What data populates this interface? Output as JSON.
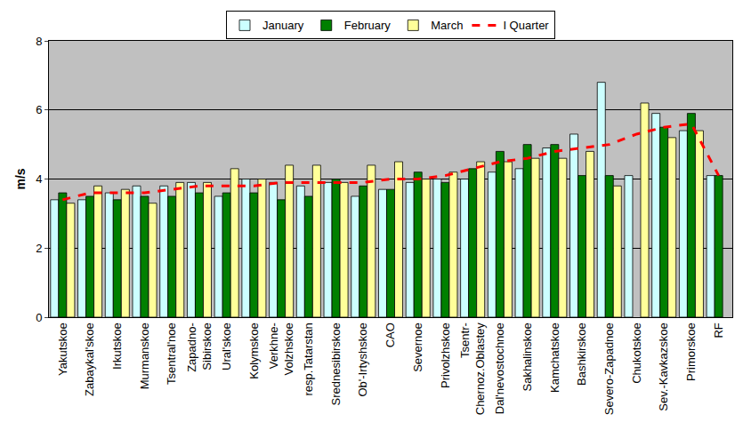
{
  "chart_data": {
    "type": "bar",
    "y_label": "m/s",
    "categories": [
      "Yakutskoe",
      "Zabaykal'skoe",
      "Irkutskoe",
      "Murmanskoe",
      "Tsentral'noe",
      "Zapadno-\nSibirskoe",
      "Ural'skoe",
      "Kolymskoe",
      "Verkhne-\nVolzhskoe",
      "resp.Tatarstan",
      "Srednesibirskoe",
      "Ob'-Irtyshskoe",
      "CAO",
      "Severnoe",
      "Privolzhskoe",
      "Tsentr-\nChernoz.Oblastey",
      "Dal'nevostochnoe",
      "Sakhalinskoe",
      "Kamchatskoe",
      "Bashkirskoe",
      "Severo-Zapadnoe",
      "Chukotskoe",
      "Sev.-Kavkazskoe",
      "Primorskoe",
      "RF"
    ],
    "series": [
      {
        "name": "January",
        "type": "bar",
        "color": "#ccffff",
        "values": [
          3.4,
          3.4,
          3.6,
          3.8,
          3.8,
          3.9,
          3.5,
          4.0,
          3.9,
          3.8,
          3.9,
          3.5,
          3.7,
          3.9,
          4.0,
          4.0,
          4.2,
          4.3,
          4.9,
          5.3,
          6.8,
          4.1,
          5.9,
          5.4,
          4.1
        ]
      },
      {
        "name": "February",
        "type": "bar",
        "color": "#008000",
        "values": [
          3.6,
          3.5,
          3.4,
          3.5,
          3.5,
          3.6,
          3.6,
          3.6,
          3.4,
          3.5,
          4.0,
          3.8,
          3.7,
          4.2,
          3.9,
          4.3,
          4.8,
          5.0,
          5.0,
          4.1,
          4.1,
          null,
          5.5,
          5.9,
          4.1
        ]
      },
      {
        "name": "March",
        "type": "bar",
        "color": "#ffff99",
        "values": [
          3.3,
          3.8,
          3.7,
          3.3,
          3.9,
          3.9,
          4.3,
          4.0,
          4.4,
          4.4,
          3.9,
          4.4,
          4.5,
          4.0,
          4.2,
          4.5,
          4.5,
          4.6,
          4.6,
          4.8,
          3.8,
          6.2,
          5.2,
          5.4,
          null
        ]
      },
      {
        "name": "I Quarter",
        "type": "line",
        "color": "#ff0000",
        "line_style": "dashed",
        "values": [
          3.4,
          3.6,
          3.6,
          3.6,
          3.7,
          3.8,
          3.8,
          3.8,
          3.9,
          3.9,
          3.9,
          3.9,
          4.0,
          4.0,
          4.1,
          4.3,
          4.5,
          4.6,
          4.8,
          4.9,
          5.0,
          5.3,
          5.5,
          5.6,
          4.1
        ]
      }
    ],
    "ylim": [
      0,
      8
    ],
    "yticks": [
      0,
      2,
      4,
      6,
      8
    ],
    "grid": true,
    "legend": "top"
  }
}
